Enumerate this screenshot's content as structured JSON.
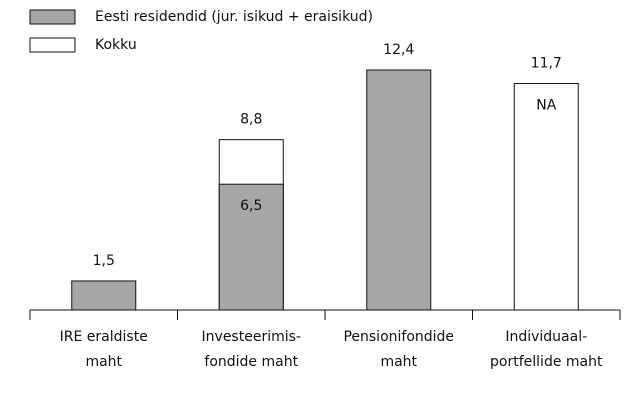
{
  "chart_data": {
    "type": "bar",
    "categories": [
      [
        "IRE eraldiste",
        "maht"
      ],
      [
        "Investeerimis-",
        "fondide maht"
      ],
      [
        "Pensionifondide",
        "maht"
      ],
      [
        "Individuaal-",
        "portfellide maht"
      ]
    ],
    "series": [
      {
        "name": "Eesti residendid (jur. isikud + eraisikud)",
        "color": "#a6a6a6",
        "values": [
          1.5,
          6.5,
          12.4,
          null
        ],
        "value_labels": [
          "1,5",
          "6,5",
          "12,4",
          "NA"
        ]
      },
      {
        "name": "Kokku",
        "color": "#ffffff",
        "values": [
          null,
          8.8,
          null,
          11.7
        ],
        "value_labels": [
          null,
          "8,8",
          null,
          "11,7"
        ]
      }
    ]
  }
}
